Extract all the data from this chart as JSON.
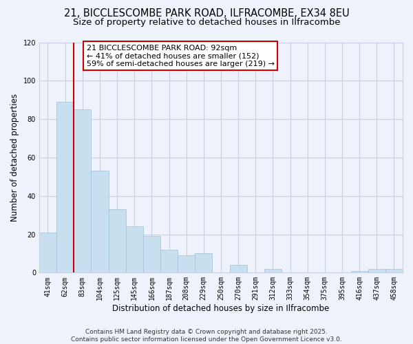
{
  "title": "21, BICCLESCOMBE PARK ROAD, ILFRACOMBE, EX34 8EU",
  "subtitle": "Size of property relative to detached houses in Ilfracombe",
  "xlabel": "Distribution of detached houses by size in Ilfracombe",
  "ylabel": "Number of detached properties",
  "categories": [
    "41sqm",
    "62sqm",
    "83sqm",
    "104sqm",
    "125sqm",
    "145sqm",
    "166sqm",
    "187sqm",
    "208sqm",
    "229sqm",
    "250sqm",
    "270sqm",
    "291sqm",
    "312sqm",
    "333sqm",
    "354sqm",
    "375sqm",
    "395sqm",
    "416sqm",
    "437sqm",
    "458sqm"
  ],
  "values": [
    21,
    89,
    85,
    53,
    33,
    24,
    19,
    12,
    9,
    10,
    0,
    4,
    0,
    2,
    0,
    0,
    0,
    0,
    1,
    2,
    2
  ],
  "bar_color": "#c8dff0",
  "bar_edge_color": "#a0c0d8",
  "vline_x_index": 2,
  "vline_color": "#cc0000",
  "annotation_line1": "21 BICCLESCOMBE PARK ROAD: 92sqm",
  "annotation_line2": "← 41% of detached houses are smaller (152)",
  "annotation_line3": "59% of semi-detached houses are larger (219) →",
  "ylim": [
    0,
    120
  ],
  "yticks": [
    0,
    20,
    40,
    60,
    80,
    100,
    120
  ],
  "footer1": "Contains HM Land Registry data © Crown copyright and database right 2025.",
  "footer2": "Contains public sector information licensed under the Open Government Licence v3.0.",
  "bg_color": "#eef2fb",
  "grid_color": "#c8d0e8",
  "title_fontsize": 10.5,
  "subtitle_fontsize": 9.5,
  "axis_label_fontsize": 8.5,
  "tick_fontsize": 7,
  "annotation_fontsize": 8,
  "footer_fontsize": 6.5
}
